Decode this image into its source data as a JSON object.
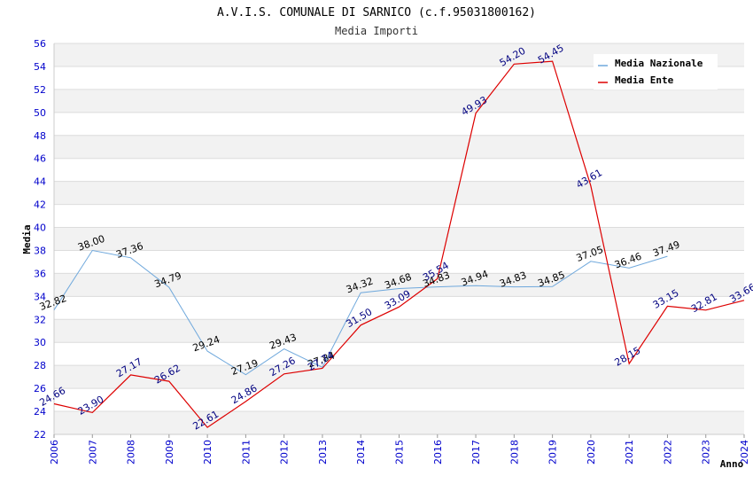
{
  "chart_data": {
    "type": "line",
    "title": "A.V.I.S. COMUNALE DI SARNICO (c.f.95031800162)",
    "subtitle": "Media Importi",
    "ylabel": "Media",
    "xlabel": "Anno",
    "ylim": [
      22,
      56
    ],
    "ystep": 2,
    "grid": true,
    "legend_position": "top-right",
    "x": [
      "2006",
      "2007",
      "2008",
      "2009",
      "2010",
      "2011",
      "2012",
      "2013",
      "2014",
      "2015",
      "2016",
      "2017",
      "2018",
      "2019",
      "2020",
      "2021",
      "2022",
      "2023",
      "2024"
    ],
    "series": [
      {
        "name": "Media Nazionale",
        "color": "#6fa8dc",
        "values": [
          32.82,
          38.0,
          37.36,
          34.79,
          29.24,
          27.19,
          29.43,
          27.84,
          34.32,
          34.68,
          34.83,
          34.94,
          34.83,
          34.85,
          37.05,
          36.46,
          37.49,
          null,
          null
        ]
      },
      {
        "name": "Media Ente",
        "color": "#dd0000",
        "values": [
          24.66,
          23.9,
          27.17,
          26.62,
          22.61,
          24.86,
          27.26,
          27.74,
          31.5,
          33.09,
          35.54,
          49.93,
          54.2,
          54.45,
          43.61,
          28.15,
          33.15,
          32.81,
          33.66
        ]
      }
    ]
  }
}
